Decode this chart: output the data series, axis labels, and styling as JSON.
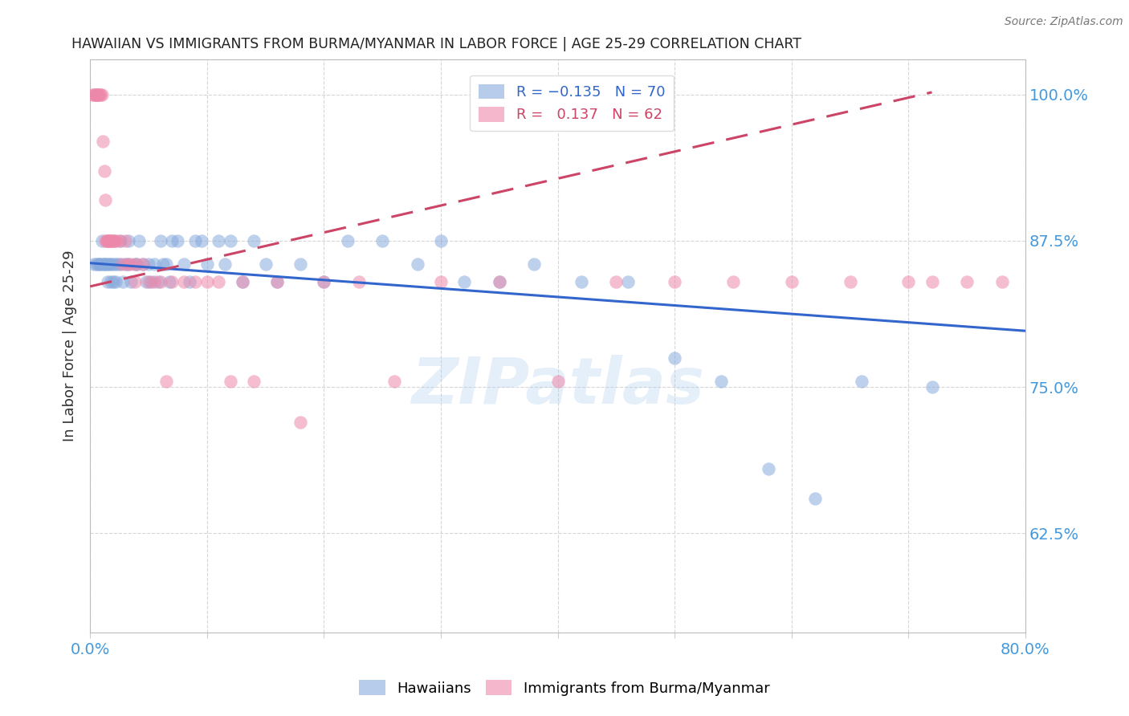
{
  "title": "HAWAIIAN VS IMMIGRANTS FROM BURMA/MYANMAR IN LABOR FORCE | AGE 25-29 CORRELATION CHART",
  "source": "Source: ZipAtlas.com",
  "ylabel": "In Labor Force | Age 25-29",
  "xmin": 0.0,
  "xmax": 0.8,
  "ymin": 0.54,
  "ymax": 1.03,
  "yticks": [
    0.625,
    0.75,
    0.875,
    1.0
  ],
  "ytick_labels": [
    "62.5%",
    "75.0%",
    "87.5%",
    "100.0%"
  ],
  "hawaiians_color": "#88aadd",
  "burma_color": "#ee88aa",
  "trend_hawaiians_color": "#3366cc",
  "trend_burma_color": "#cc4466",
  "background_color": "#ffffff",
  "grid_color": "#cccccc",
  "axis_label_color": "#4499dd",
  "watermark": "ZIPatlas",
  "hawaiians_x": [
    0.003,
    0.005,
    0.007,
    0.008,
    0.009,
    0.01,
    0.011,
    0.012,
    0.013,
    0.014,
    0.015,
    0.016,
    0.017,
    0.018,
    0.019,
    0.02,
    0.021,
    0.022,
    0.023,
    0.025,
    0.026,
    0.028,
    0.03,
    0.032,
    0.033,
    0.035,
    0.038,
    0.04,
    0.042,
    0.045,
    0.048,
    0.05,
    0.052,
    0.055,
    0.058,
    0.06,
    0.062,
    0.065,
    0.068,
    0.07,
    0.075,
    0.08,
    0.085,
    0.09,
    0.095,
    0.1,
    0.11,
    0.115,
    0.12,
    0.13,
    0.14,
    0.15,
    0.16,
    0.18,
    0.2,
    0.22,
    0.25,
    0.28,
    0.3,
    0.32,
    0.35,
    0.38,
    0.42,
    0.46,
    0.5,
    0.54,
    0.58,
    0.62,
    0.66,
    0.72
  ],
  "hawaiians_y": [
    0.855,
    0.855,
    0.855,
    0.855,
    0.855,
    0.875,
    0.855,
    0.855,
    0.855,
    0.855,
    0.84,
    0.855,
    0.855,
    0.84,
    0.855,
    0.84,
    0.855,
    0.84,
    0.855,
    0.855,
    0.875,
    0.84,
    0.855,
    0.855,
    0.875,
    0.84,
    0.855,
    0.855,
    0.875,
    0.855,
    0.84,
    0.855,
    0.84,
    0.855,
    0.84,
    0.875,
    0.855,
    0.855,
    0.84,
    0.875,
    0.875,
    0.855,
    0.84,
    0.875,
    0.875,
    0.855,
    0.875,
    0.855,
    0.875,
    0.84,
    0.875,
    0.855,
    0.84,
    0.855,
    0.84,
    0.875,
    0.875,
    0.855,
    0.875,
    0.84,
    0.84,
    0.855,
    0.84,
    0.84,
    0.775,
    0.755,
    0.68,
    0.655,
    0.755,
    0.75
  ],
  "burma_x": [
    0.002,
    0.003,
    0.004,
    0.005,
    0.005,
    0.006,
    0.006,
    0.007,
    0.008,
    0.009,
    0.01,
    0.011,
    0.012,
    0.013,
    0.013,
    0.014,
    0.015,
    0.015,
    0.016,
    0.017,
    0.018,
    0.019,
    0.02,
    0.021,
    0.022,
    0.025,
    0.027,
    0.03,
    0.032,
    0.035,
    0.038,
    0.04,
    0.045,
    0.05,
    0.055,
    0.06,
    0.065,
    0.07,
    0.08,
    0.09,
    0.1,
    0.11,
    0.12,
    0.13,
    0.14,
    0.16,
    0.18,
    0.2,
    0.23,
    0.26,
    0.3,
    0.35,
    0.4,
    0.45,
    0.5,
    0.55,
    0.6,
    0.65,
    0.7,
    0.72,
    0.75,
    0.78
  ],
  "burma_y": [
    1.0,
    1.0,
    1.0,
    1.0,
    1.0,
    1.0,
    1.0,
    1.0,
    1.0,
    1.0,
    1.0,
    0.96,
    0.935,
    0.91,
    0.875,
    0.875,
    0.875,
    0.875,
    0.875,
    0.875,
    0.875,
    0.875,
    0.875,
    0.875,
    0.875,
    0.875,
    0.855,
    0.875,
    0.855,
    0.855,
    0.84,
    0.855,
    0.855,
    0.84,
    0.84,
    0.84,
    0.755,
    0.84,
    0.84,
    0.84,
    0.84,
    0.84,
    0.755,
    0.84,
    0.755,
    0.84,
    0.72,
    0.84,
    0.84,
    0.755,
    0.84,
    0.84,
    0.755,
    0.84,
    0.84,
    0.84,
    0.84,
    0.84,
    0.84,
    0.84,
    0.84,
    0.84
  ],
  "r_hawaiians": -0.135,
  "n_hawaiians": 70,
  "r_burma": 0.137,
  "n_burma": 62,
  "trend_h_x0": 0.0,
  "trend_h_x1": 0.8,
  "trend_h_y0": 0.856,
  "trend_h_y1": 0.798,
  "trend_b_x0": 0.0,
  "trend_b_x1": 0.72,
  "trend_b_y0": 0.836,
  "trend_b_y1": 1.002
}
